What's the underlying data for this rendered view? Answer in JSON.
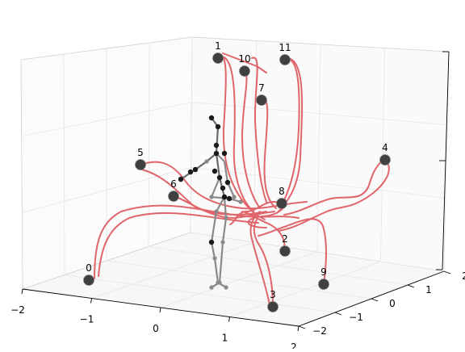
{
  "chart_data": {
    "type": "scatter",
    "projection": "3d",
    "grid": true,
    "x_ticks": [
      "−2",
      "−1",
      "0",
      "1",
      "2"
    ],
    "y_ticks": [
      "−2",
      "−1",
      "0",
      "1",
      "2"
    ],
    "z_ticks": [
      "",
      "",
      ""
    ],
    "marker_labels": [
      "0",
      "1",
      "2",
      "3",
      "4",
      "5",
      "6",
      "7",
      "8",
      "9",
      "10",
      "11"
    ],
    "colors": {
      "trajectory": "#e0656b",
      "marker": "#404040",
      "skeleton_dark": "#1a1a1a",
      "skeleton_light": "#8a8a8a",
      "grid": "#e6e6e6",
      "pane_edge": "#d0d0d0"
    }
  }
}
